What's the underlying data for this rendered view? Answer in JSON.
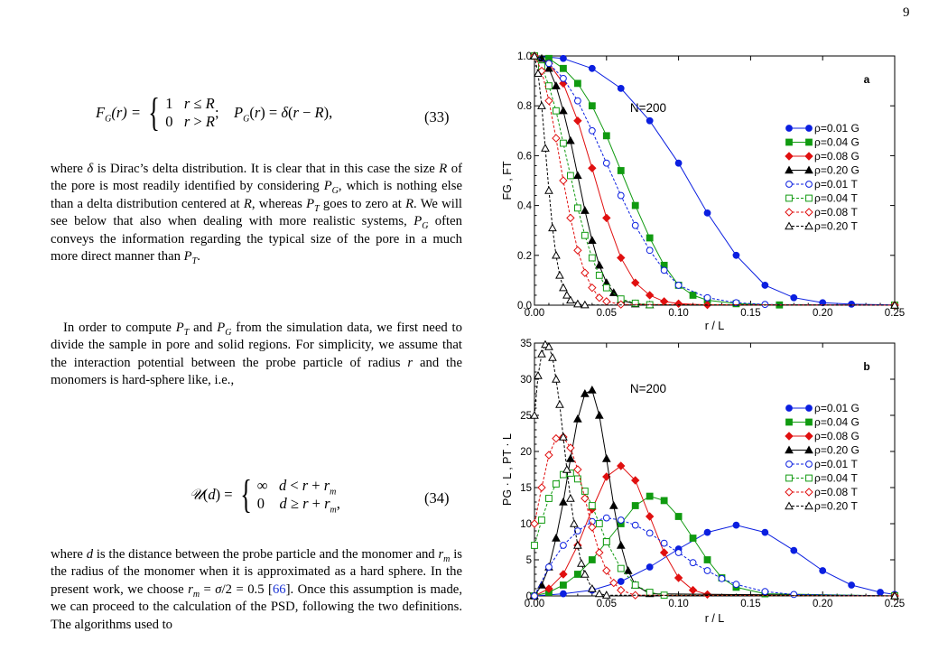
{
  "page_number": "9",
  "eq33": {
    "lhs": "F_G(r) =",
    "case1": "1   r ≤ R",
    "case2": "0   r > R",
    "rhs": ";    P_G(r) = δ(r − R),",
    "number": "(33)"
  },
  "paragraph1": "where δ is Dirac's delta distribution. It is clear that in this case the size R of the pore is most readily identified by considering P_G, which is nothing else than a delta distribution centered at R, whereas P_T goes to zero at R. We will see below that also when dealing with more realistic systems, P_G often conveys the information regarding the typical size of the pore in a much more direct manner than P_T.",
  "paragraph2": "In order to compute P_T and P_G from the simulation data, we first need to divide the sample in pore and solid regions. For simplicity, we assume that the interaction potential between the probe particle of radius r and the monomers is hard-sphere like, i.e.,",
  "eq34": {
    "lhs": "𝒰(d) =",
    "case1": "∞   d < r + r_m",
    "case2": "0    d ≥ r + r_m,",
    "number": "(34)"
  },
  "paragraph3_a": "where d is the distance between the probe particle and the monomer and r_m is the radius of the monomer when it is approximated as a hard sphere. In the present work, we choose r_m = σ/2 = 0.5 [",
  "paragraph3_ref": "66",
  "paragraph3_b": "]. Once this assumption is made, we can proceed to the calculation of the PSD, following the two definitions. The algorithms used to",
  "legend_entries": [
    "ρ=0.01 G",
    "ρ=0.04 G",
    "ρ=0.08 G",
    "ρ=0.20 G",
    "ρ=0.01 T",
    "ρ=0.04 T",
    "ρ=0.08 T",
    "ρ=0.20 T"
  ],
  "colors": {
    "blue": "#0b1fe0",
    "green": "#109a10",
    "red": "#e01010",
    "black": "#000000"
  },
  "chart_data": [
    {
      "type": "line",
      "panel_label": "a",
      "annotation": "N=200",
      "xlabel": "r / L",
      "ylabel": "F_G , F_T",
      "xlim": [
        0,
        0.25
      ],
      "ylim": [
        0,
        1.0
      ],
      "xticks": [
        "0.00",
        "0.05",
        "0.10",
        "0.15",
        "0.20",
        "0.25"
      ],
      "yticks": [
        "0.0",
        "0.2",
        "0.4",
        "0.6",
        "0.8",
        "1.0"
      ],
      "legend_position": "right",
      "series": [
        {
          "name": "ρ=0.01 G",
          "color": "blue",
          "marker": "circle",
          "filled": true,
          "x": [
            0,
            0.02,
            0.04,
            0.06,
            0.08,
            0.1,
            0.12,
            0.14,
            0.16,
            0.18,
            0.2,
            0.22,
            0.25
          ],
          "y": [
            1.0,
            0.99,
            0.95,
            0.87,
            0.74,
            0.57,
            0.37,
            0.2,
            0.08,
            0.03,
            0.01,
            0.004,
            0.001
          ]
        },
        {
          "name": "ρ=0.04 G",
          "color": "green",
          "marker": "square",
          "filled": true,
          "x": [
            0,
            0.01,
            0.02,
            0.03,
            0.04,
            0.05,
            0.06,
            0.07,
            0.08,
            0.09,
            0.1,
            0.11,
            0.12,
            0.14,
            0.17,
            0.25
          ],
          "y": [
            1.0,
            0.99,
            0.95,
            0.89,
            0.8,
            0.68,
            0.54,
            0.4,
            0.27,
            0.16,
            0.08,
            0.04,
            0.02,
            0.006,
            0.001,
            0
          ]
        },
        {
          "name": "ρ=0.08 G",
          "color": "red",
          "marker": "diamond",
          "filled": true,
          "x": [
            0,
            0.01,
            0.02,
            0.03,
            0.04,
            0.05,
            0.06,
            0.07,
            0.08,
            0.09,
            0.1,
            0.12,
            0.25
          ],
          "y": [
            1.0,
            0.97,
            0.89,
            0.74,
            0.55,
            0.35,
            0.19,
            0.09,
            0.04,
            0.015,
            0.006,
            0.001,
            0
          ]
        },
        {
          "name": "ρ=0.20 G",
          "color": "black",
          "marker": "triangle",
          "filled": true,
          "x": [
            0,
            0.005,
            0.01,
            0.015,
            0.02,
            0.025,
            0.03,
            0.035,
            0.04,
            0.045,
            0.05,
            0.055,
            0.06,
            0.07,
            0.08,
            0.25
          ],
          "y": [
            1.0,
            0.99,
            0.95,
            0.88,
            0.78,
            0.66,
            0.52,
            0.38,
            0.26,
            0.16,
            0.09,
            0.05,
            0.02,
            0.005,
            0.001,
            0
          ]
        },
        {
          "name": "ρ=0.01 T",
          "color": "blue",
          "marker": "circle",
          "filled": false,
          "x": [
            0,
            0.01,
            0.02,
            0.03,
            0.04,
            0.05,
            0.06,
            0.07,
            0.08,
            0.09,
            0.1,
            0.12,
            0.14,
            0.16,
            0.25
          ],
          "y": [
            1.0,
            0.97,
            0.91,
            0.82,
            0.7,
            0.57,
            0.44,
            0.32,
            0.22,
            0.14,
            0.08,
            0.03,
            0.01,
            0.003,
            0
          ]
        },
        {
          "name": "ρ=0.04 T",
          "color": "green",
          "marker": "square",
          "filled": false,
          "x": [
            0,
            0.005,
            0.01,
            0.015,
            0.02,
            0.025,
            0.03,
            0.035,
            0.04,
            0.045,
            0.05,
            0.06,
            0.07,
            0.08,
            0.25
          ],
          "y": [
            1.0,
            0.96,
            0.88,
            0.78,
            0.65,
            0.52,
            0.39,
            0.28,
            0.19,
            0.12,
            0.07,
            0.025,
            0.008,
            0.002,
            0
          ]
        },
        {
          "name": "ρ=0.08 T",
          "color": "red",
          "marker": "diamond",
          "filled": false,
          "x": [
            0,
            0.005,
            0.01,
            0.015,
            0.02,
            0.025,
            0.03,
            0.035,
            0.04,
            0.045,
            0.05,
            0.06,
            0.25
          ],
          "y": [
            1.0,
            0.94,
            0.82,
            0.67,
            0.5,
            0.35,
            0.22,
            0.13,
            0.07,
            0.03,
            0.015,
            0.003,
            0
          ]
        },
        {
          "name": "ρ=0.20 T",
          "color": "black",
          "marker": "triangle",
          "filled": false,
          "x": [
            0,
            0.0025,
            0.005,
            0.0075,
            0.01,
            0.0125,
            0.015,
            0.0175,
            0.02,
            0.0225,
            0.025,
            0.03,
            0.035,
            0.25
          ],
          "y": [
            1.0,
            0.93,
            0.8,
            0.63,
            0.46,
            0.31,
            0.2,
            0.12,
            0.07,
            0.04,
            0.02,
            0.005,
            0.001,
            0
          ]
        }
      ]
    },
    {
      "type": "line",
      "panel_label": "b",
      "annotation": "N=200",
      "xlabel": "r / L",
      "ylabel": "P_G · L , P_T · L",
      "xlim": [
        0,
        0.25
      ],
      "ylim": [
        0,
        35
      ],
      "xticks": [
        "0.00",
        "0.05",
        "0.10",
        "0.15",
        "0.20",
        "0.25"
      ],
      "yticks": [
        "0",
        "5",
        "10",
        "15",
        "20",
        "25",
        "30",
        "35"
      ],
      "legend_position": "right",
      "series": [
        {
          "name": "ρ=0.01 G",
          "color": "blue",
          "marker": "circle",
          "filled": true,
          "x": [
            0,
            0.02,
            0.04,
            0.06,
            0.08,
            0.1,
            0.12,
            0.14,
            0.16,
            0.18,
            0.2,
            0.22,
            0.24,
            0.25
          ],
          "y": [
            0,
            0.3,
            0.8,
            2.0,
            4.0,
            6.5,
            8.8,
            9.8,
            8.8,
            6.3,
            3.5,
            1.5,
            0.5,
            0.2
          ]
        },
        {
          "name": "ρ=0.04 G",
          "color": "green",
          "marker": "square",
          "filled": true,
          "x": [
            0,
            0.01,
            0.02,
            0.03,
            0.04,
            0.05,
            0.06,
            0.07,
            0.08,
            0.09,
            0.1,
            0.11,
            0.12,
            0.13,
            0.14,
            0.16,
            0.25
          ],
          "y": [
            0,
            0.5,
            1.5,
            3.0,
            5.0,
            7.5,
            10.0,
            12.5,
            13.8,
            13.2,
            11.0,
            8.0,
            5.0,
            2.5,
            1.2,
            0.3,
            0
          ]
        },
        {
          "name": "ρ=0.08 G",
          "color": "red",
          "marker": "diamond",
          "filled": true,
          "x": [
            0,
            0.01,
            0.02,
            0.03,
            0.04,
            0.05,
            0.06,
            0.07,
            0.08,
            0.09,
            0.1,
            0.11,
            0.12,
            0.25
          ],
          "y": [
            0,
            1.0,
            3.0,
            7.0,
            12.0,
            16.5,
            18.0,
            16.0,
            11.0,
            6.0,
            2.5,
            0.8,
            0.2,
            0
          ]
        },
        {
          "name": "ρ=0.20 G",
          "color": "black",
          "marker": "triangle",
          "filled": true,
          "x": [
            0,
            0.005,
            0.01,
            0.015,
            0.02,
            0.025,
            0.03,
            0.035,
            0.04,
            0.045,
            0.05,
            0.055,
            0.06,
            0.065,
            0.07,
            0.08,
            0.25
          ],
          "y": [
            0,
            1.5,
            4.0,
            8.0,
            13.0,
            19.0,
            24.5,
            28.0,
            28.5,
            25.0,
            19.0,
            12.5,
            7.0,
            3.5,
            1.5,
            0.3,
            0
          ]
        },
        {
          "name": "ρ=0.01 T",
          "color": "blue",
          "marker": "circle",
          "filled": false,
          "x": [
            0,
            0.01,
            0.02,
            0.03,
            0.04,
            0.05,
            0.06,
            0.07,
            0.08,
            0.09,
            0.1,
            0.11,
            0.12,
            0.13,
            0.14,
            0.16,
            0.18,
            0.25
          ],
          "y": [
            0,
            4.0,
            7.0,
            9.0,
            10.3,
            10.8,
            10.5,
            9.8,
            8.7,
            7.3,
            6.0,
            4.6,
            3.5,
            2.4,
            1.6,
            0.6,
            0.2,
            0
          ]
        },
        {
          "name": "ρ=0.04 T",
          "color": "green",
          "marker": "square",
          "filled": false,
          "x": [
            0,
            0.005,
            0.01,
            0.015,
            0.02,
            0.025,
            0.03,
            0.035,
            0.04,
            0.045,
            0.05,
            0.06,
            0.07,
            0.08,
            0.09,
            0.25
          ],
          "y": [
            7.0,
            10.5,
            13.5,
            15.5,
            16.8,
            17.0,
            16.2,
            14.5,
            12.5,
            10.0,
            7.5,
            3.8,
            1.5,
            0.5,
            0.1,
            0
          ]
        },
        {
          "name": "ρ=0.08 T",
          "color": "red",
          "marker": "diamond",
          "filled": false,
          "x": [
            0,
            0.005,
            0.01,
            0.015,
            0.02,
            0.025,
            0.03,
            0.035,
            0.04,
            0.045,
            0.05,
            0.055,
            0.06,
            0.07,
            0.25
          ],
          "y": [
            10.0,
            15.0,
            19.5,
            21.8,
            22.0,
            20.5,
            17.5,
            13.5,
            9.5,
            6.0,
            3.5,
            1.8,
            0.8,
            0.1,
            0
          ]
        },
        {
          "name": "ρ=0.20 T",
          "color": "black",
          "marker": "triangle",
          "filled": false,
          "x": [
            0,
            0.0025,
            0.005,
            0.0075,
            0.01,
            0.0125,
            0.015,
            0.0175,
            0.02,
            0.0225,
            0.025,
            0.0275,
            0.03,
            0.0325,
            0.035,
            0.04,
            0.045,
            0.05,
            0.25
          ],
          "y": [
            25.0,
            30.5,
            33.5,
            34.8,
            34.5,
            33.0,
            30.0,
            26.5,
            22.0,
            17.5,
            13.5,
            10.0,
            7.0,
            4.5,
            3.0,
            1.0,
            0.3,
            0.1,
            0
          ]
        }
      ]
    }
  ]
}
